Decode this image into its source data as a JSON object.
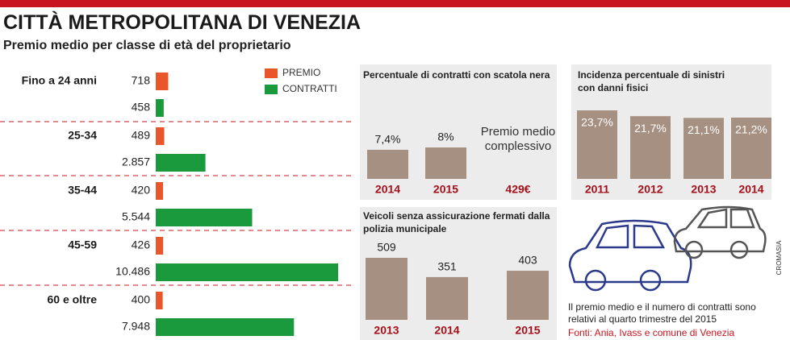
{
  "header": {
    "title": "CITTÀ METROPOLITANA DI VENEZIA"
  },
  "chart_data": [
    {
      "type": "bar",
      "horizontal": true,
      "title": "Premio medio per classe di età del proprietario",
      "categories": [
        "Fino a 24 anni",
        "25-34",
        "35-44",
        "45-59",
        "60 e oltre"
      ],
      "series": [
        {
          "name": "PREMIO",
          "color": "#e8562a",
          "values": [
            718,
            489,
            420,
            426,
            400
          ]
        },
        {
          "name": "CONTRATTI",
          "color": "#1a9a3c",
          "values": [
            458,
            2857,
            5544,
            10486,
            7948
          ],
          "value_labels": [
            "458",
            "2.857",
            "5.544",
            "10.486",
            "7.948"
          ]
        }
      ]
    },
    {
      "type": "bar",
      "title": "Percentuale di contratti con scatola nera",
      "categories": [
        "2014",
        "2015"
      ],
      "values": [
        7.4,
        8
      ],
      "value_labels": [
        "7,4%",
        "8%"
      ],
      "color": "#a69082",
      "annotation": "Premio medio complessivo",
      "annotation_value": "429€"
    },
    {
      "type": "bar",
      "title": "Incidenza percentuale di sinistri con danni fisici",
      "categories": [
        "2011",
        "2012",
        "2013",
        "2014"
      ],
      "values": [
        23.7,
        21.7,
        21.1,
        21.2
      ],
      "value_labels": [
        "23,7%",
        "21,7%",
        "21,1%",
        "21,2%"
      ],
      "color": "#a69082"
    },
    {
      "type": "bar",
      "title": "Veicoli senza assicurazione fermati dalla polizia municipale",
      "categories": [
        "2013",
        "2014",
        "2015"
      ],
      "values": [
        509,
        351,
        403
      ],
      "color": "#a69082"
    }
  ],
  "note": "Il premio medio e il numero di contratti sono relativi al quarto trimestre del 2015",
  "source": "Fonti: Ania, Ivass e comune di Venezia",
  "credit": "CROMASIA"
}
